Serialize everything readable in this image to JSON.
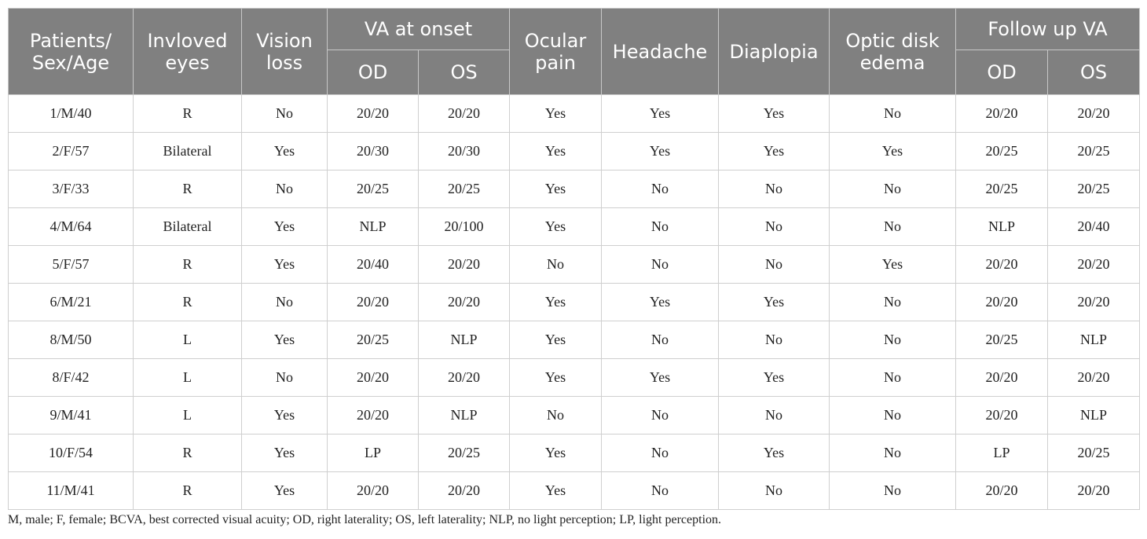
{
  "headers": {
    "patients": "Patients/ Sex/Age",
    "involved_eyes": "Invloved eyes",
    "vision_loss": "Vision loss",
    "va_onset": "VA at onset",
    "va_onset_od": "OD",
    "va_onset_os": "OS",
    "ocular_pain": "Ocular pain",
    "headache": "Headache",
    "diplopia": "Diaplopia",
    "optic_disk": "Optic disk edema",
    "follow_up": "Follow up VA",
    "follow_od": "OD",
    "follow_os": "OS"
  },
  "rows": [
    [
      "1/M/40",
      "R",
      "No",
      "20/20",
      "20/20",
      "Yes",
      "Yes",
      "Yes",
      "No",
      "20/20",
      "20/20"
    ],
    [
      "2/F/57",
      "Bilateral",
      "Yes",
      "20/30",
      "20/30",
      "Yes",
      "Yes",
      "Yes",
      "Yes",
      "20/25",
      "20/25"
    ],
    [
      "3/F/33",
      "R",
      "No",
      "20/25",
      "20/25",
      "Yes",
      "No",
      "No",
      "No",
      "20/25",
      "20/25"
    ],
    [
      "4/M/64",
      "Bilateral",
      "Yes",
      "NLP",
      "20/100",
      "Yes",
      "No",
      "No",
      "No",
      "NLP",
      "20/40"
    ],
    [
      "5/F/57",
      "R",
      "Yes",
      "20/40",
      "20/20",
      "No",
      "No",
      "No",
      "Yes",
      "20/20",
      "20/20"
    ],
    [
      "6/M/21",
      "R",
      "No",
      "20/20",
      "20/20",
      "Yes",
      "Yes",
      "Yes",
      "No",
      "20/20",
      "20/20"
    ],
    [
      "8/M/50",
      "L",
      "Yes",
      "20/25",
      "NLP",
      "Yes",
      "No",
      "No",
      "No",
      "20/25",
      "NLP"
    ],
    [
      "8/F/42",
      "L",
      "No",
      "20/20",
      "20/20",
      "Yes",
      "Yes",
      "Yes",
      "No",
      "20/20",
      "20/20"
    ],
    [
      "9/M/41",
      "L",
      "Yes",
      "20/20",
      "NLP",
      "No",
      "No",
      "No",
      "No",
      "20/20",
      "NLP"
    ],
    [
      "10/F/54",
      "R",
      "Yes",
      "LP",
      "20/25",
      "Yes",
      "No",
      "Yes",
      "No",
      "LP",
      "20/25"
    ],
    [
      "11/M/41",
      "R",
      "Yes",
      "20/20",
      "20/20",
      "Yes",
      "No",
      "No",
      "No",
      "20/20",
      "20/20"
    ]
  ],
  "footnote": "M, male; F, female; BCVA, best corrected visual acuity; OD, right laterality; OS, left laterality; NLP, no light perception; LP, light perception."
}
